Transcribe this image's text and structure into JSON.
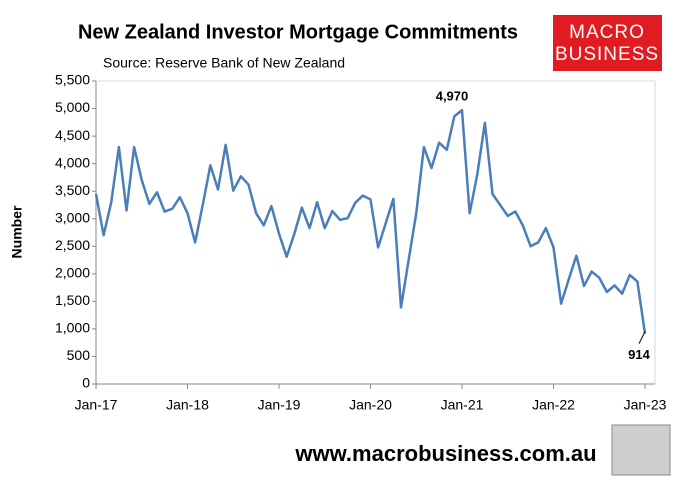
{
  "chart_data": {
    "type": "line",
    "title": "New Zealand Investor Mortgage Commitments",
    "subtitle": "Source: Reserve Bank of New Zealand",
    "ylabel": "Number",
    "logo": [
      "MACRO",
      "BUSINESS"
    ],
    "footer": "www.macrobusiness.com.au",
    "categories": [
      "Jan-17",
      null,
      null,
      null,
      null,
      null,
      null,
      null,
      null,
      null,
      null,
      null,
      "Jan-18",
      null,
      null,
      null,
      null,
      null,
      null,
      null,
      null,
      null,
      null,
      null,
      "Jan-19",
      null,
      null,
      null,
      null,
      null,
      null,
      null,
      null,
      null,
      null,
      null,
      "Jan-20",
      null,
      null,
      null,
      null,
      null,
      null,
      null,
      null,
      null,
      null,
      null,
      "Jan-21",
      null,
      null,
      null,
      null,
      null,
      null,
      null,
      null,
      null,
      null,
      null,
      "Jan-22",
      null,
      null,
      null,
      null,
      null,
      null,
      null,
      null,
      null,
      null,
      null,
      "Jan-23"
    ],
    "series": [
      {
        "name": "Investor mortgage commitments",
        "color": "#4a7ebb",
        "values": [
          3450,
          2700,
          3300,
          4300,
          3150,
          4300,
          3700,
          3270,
          3480,
          3130,
          3180,
          3390,
          3100,
          2570,
          3250,
          3970,
          3530,
          4340,
          3510,
          3770,
          3620,
          3100,
          2880,
          3230,
          2730,
          2310,
          2720,
          3200,
          2830,
          3300,
          2830,
          3140,
          2980,
          3010,
          3290,
          3420,
          3350,
          2480,
          2920,
          3360,
          1390,
          2250,
          3100,
          4300,
          3920,
          4380,
          4250,
          4860,
          4970,
          3100,
          3800,
          4740,
          3450,
          3250,
          3050,
          3130,
          2870,
          2500,
          2570,
          2830,
          2480,
          1460,
          1900,
          2330,
          1780,
          2040,
          1930,
          1670,
          1790,
          1640,
          1980,
          1860,
          914
        ],
        "value_labels": [
          null,
          null,
          null,
          null,
          null,
          null,
          null,
          null,
          null,
          null,
          null,
          null,
          null,
          null,
          null,
          null,
          null,
          null,
          null,
          null,
          null,
          null,
          null,
          null,
          null,
          null,
          null,
          null,
          null,
          null,
          null,
          null,
          null,
          null,
          null,
          null,
          null,
          null,
          null,
          null,
          null,
          null,
          null,
          null,
          null,
          null,
          null,
          null,
          "4,970",
          null,
          null,
          null,
          null,
          null,
          null,
          null,
          null,
          null,
          null,
          null,
          null,
          null,
          null,
          null,
          null,
          null,
          null,
          null,
          null,
          null,
          null,
          null,
          "914"
        ]
      }
    ],
    "ylim": [
      0,
      5500
    ],
    "yticks": [
      0,
      500,
      {
        "value": 1000,
        "label": "1,000"
      },
      {
        "value": 1500,
        "label": "1,500"
      },
      {
        "value": 2000,
        "label": "2,000"
      },
      {
        "value": 2500,
        "label": "2,500"
      },
      {
        "value": 3000,
        "label": "3,000"
      },
      {
        "value": 3500,
        "label": "3,500"
      },
      {
        "value": 4000,
        "label": "4,000"
      },
      {
        "value": 4500,
        "label": "4,500"
      },
      {
        "value": 5000,
        "label": "5,000"
      },
      {
        "value": 5500,
        "label": "5,500"
      }
    ],
    "grid": false
  }
}
